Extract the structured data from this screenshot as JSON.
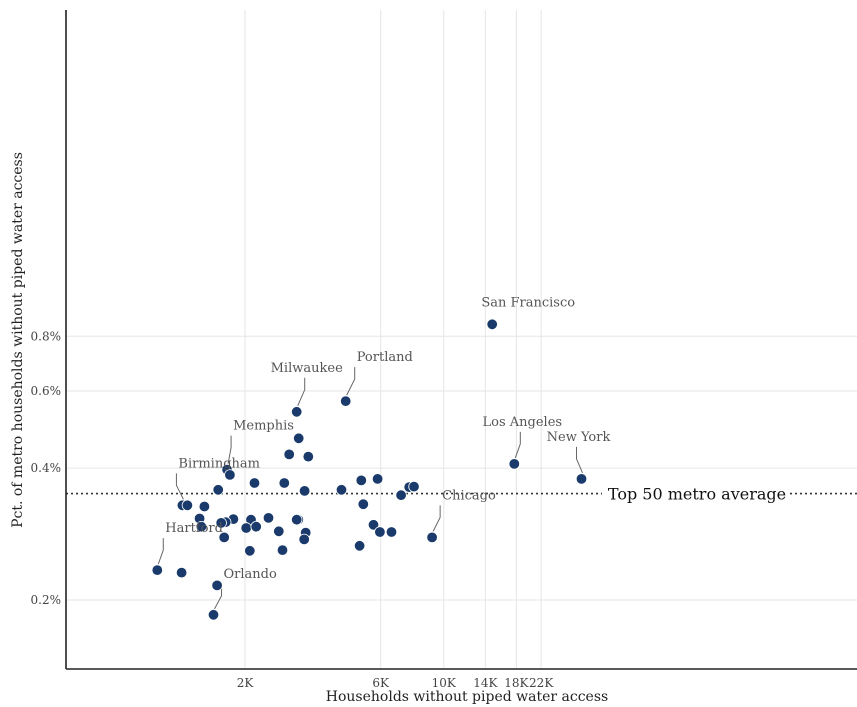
{
  "chart_data": {
    "type": "scatter",
    "xlabel": "Households without piped water access",
    "ylabel": "Pct. of metro households without piped water access",
    "x_scale": "log",
    "y_scale": "log",
    "x_ticks": [
      {
        "value": 2000,
        "label": "2K"
      },
      {
        "value": 6000,
        "label": "6K"
      },
      {
        "value": 10000,
        "label": "10K"
      },
      {
        "value": 14000,
        "label": "14K"
      },
      {
        "value": 18000,
        "label": "18K"
      },
      {
        "value": 22000,
        "label": "22K"
      }
    ],
    "y_ticks": [
      {
        "value": 0.2,
        "label": "0.2%"
      },
      {
        "value": 0.4,
        "label": "0.4%"
      },
      {
        "value": 0.6,
        "label": "0.6%"
      },
      {
        "value": 0.8,
        "label": "0.8%"
      }
    ],
    "xlim": [
      900,
      32000
    ],
    "ylim": [
      0.17,
      0.93
    ],
    "reference_line": {
      "y": 0.35,
      "label": "Top 50 metro average"
    },
    "grid": true,
    "point_color": "#1a3a6b",
    "points": [
      {
        "x": 14800,
        "y": 0.852,
        "label": "San Francisco"
      },
      {
        "x": 4520,
        "y": 0.569,
        "label": "Portland"
      },
      {
        "x": 3040,
        "y": 0.538,
        "label": "Milwaukee"
      },
      {
        "x": 1730,
        "y": 0.397,
        "label": "Memphis"
      },
      {
        "x": 1205,
        "y": 0.329,
        "label": "Birmingham"
      },
      {
        "x": 17700,
        "y": 0.409,
        "label": "Los Angeles"
      },
      {
        "x": 30500,
        "y": 0.378,
        "label": "New York"
      },
      {
        "x": 9100,
        "y": 0.278,
        "label": "Chicago"
      },
      {
        "x": 983,
        "y": 0.234,
        "label": "Hartford"
      },
      {
        "x": 1550,
        "y": 0.185,
        "label": "Orlando"
      },
      {
        "x": 3090,
        "y": 0.468
      },
      {
        "x": 2860,
        "y": 0.43
      },
      {
        "x": 3340,
        "y": 0.425
      },
      {
        "x": 1770,
        "y": 0.386
      },
      {
        "x": 1610,
        "y": 0.357
      },
      {
        "x": 2160,
        "y": 0.37
      },
      {
        "x": 2750,
        "y": 0.37
      },
      {
        "x": 3240,
        "y": 0.355
      },
      {
        "x": 4370,
        "y": 0.357
      },
      {
        "x": 5130,
        "y": 0.375
      },
      {
        "x": 5850,
        "y": 0.378
      },
      {
        "x": 7560,
        "y": 0.362
      },
      {
        "x": 7860,
        "y": 0.363
      },
      {
        "x": 7080,
        "y": 0.347
      },
      {
        "x": 5210,
        "y": 0.331
      },
      {
        "x": 1255,
        "y": 0.329
      },
      {
        "x": 1440,
        "y": 0.327
      },
      {
        "x": 1385,
        "y": 0.307
      },
      {
        "x": 1820,
        "y": 0.306
      },
      {
        "x": 2100,
        "y": 0.305
      },
      {
        "x": 2420,
        "y": 0.308
      },
      {
        "x": 1710,
        "y": 0.301
      },
      {
        "x": 1650,
        "y": 0.3
      },
      {
        "x": 1405,
        "y": 0.294
      },
      {
        "x": 2020,
        "y": 0.292
      },
      {
        "x": 2190,
        "y": 0.294
      },
      {
        "x": 3080,
        "y": 0.305
      },
      {
        "x": 3040,
        "y": 0.305
      },
      {
        "x": 5660,
        "y": 0.297
      },
      {
        "x": 2630,
        "y": 0.287
      },
      {
        "x": 3270,
        "y": 0.285
      },
      {
        "x": 5960,
        "y": 0.286
      },
      {
        "x": 6550,
        "y": 0.286
      },
      {
        "x": 1690,
        "y": 0.278
      },
      {
        "x": 3230,
        "y": 0.275
      },
      {
        "x": 5060,
        "y": 0.266
      },
      {
        "x": 2080,
        "y": 0.259
      },
      {
        "x": 2710,
        "y": 0.26
      },
      {
        "x": 1197,
        "y": 0.231
      },
      {
        "x": 1595,
        "y": 0.216
      }
    ]
  }
}
